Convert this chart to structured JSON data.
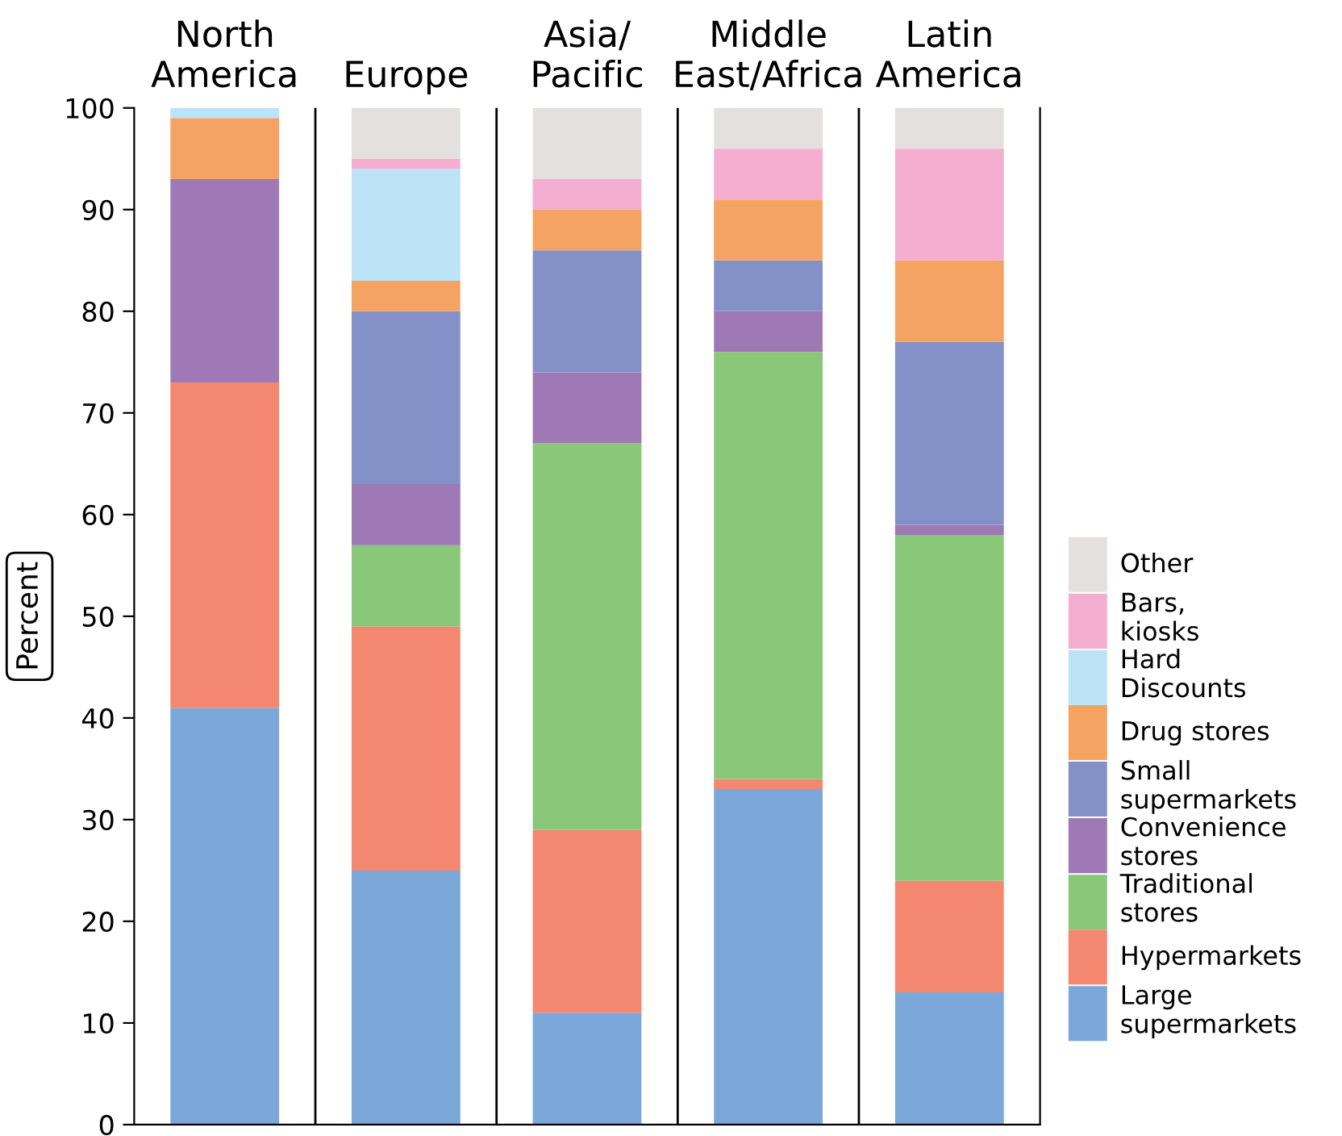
{
  "chart_data": {
    "type": "bar",
    "stacked": true,
    "ylabel": "Percent",
    "categories": [
      "North\nAmerica",
      "Europe",
      "Asia/\nPacific",
      "Middle\nEast/Africa",
      "Latin\nAmerica"
    ],
    "series": [
      {
        "name": "Large\nsupermarkets",
        "color": "#7ba7d9",
        "values": [
          41,
          25,
          11,
          33,
          13
        ]
      },
      {
        "name": "Hypermarkets",
        "color": "#f4876f",
        "values": [
          32,
          24,
          18,
          1,
          11
        ]
      },
      {
        "name": "Traditional\nstores",
        "color": "#88c878",
        "values": [
          0,
          8,
          38,
          42,
          34
        ]
      },
      {
        "name": "Convenience\nstores",
        "color": "#9e79b5",
        "values": [
          20,
          6,
          7,
          4,
          1
        ]
      },
      {
        "name": "Small\nsupermarkets",
        "color": "#8491c9",
        "values": [
          0,
          17,
          12,
          5,
          18
        ]
      },
      {
        "name": "Drug stores",
        "color": "#f5a362",
        "values": [
          6,
          3,
          4,
          6,
          8
        ]
      },
      {
        "name": "Hard\nDiscounts",
        "color": "#bde3f7",
        "values": [
          1,
          11,
          0,
          0,
          0
        ]
      },
      {
        "name": "Bars,\nkiosks",
        "color": "#f4aed0",
        "values": [
          0,
          1,
          3,
          5,
          11
        ]
      },
      {
        "name": "Other",
        "color": "#e4e0e0",
        "values": [
          0,
          5,
          7,
          4,
          4
        ]
      }
    ],
    "ylim": [
      0,
      100
    ],
    "yticks": [
      0,
      10,
      20,
      30,
      40,
      50,
      60,
      70,
      80,
      90,
      100
    ],
    "grid": "x",
    "legend": "right"
  }
}
